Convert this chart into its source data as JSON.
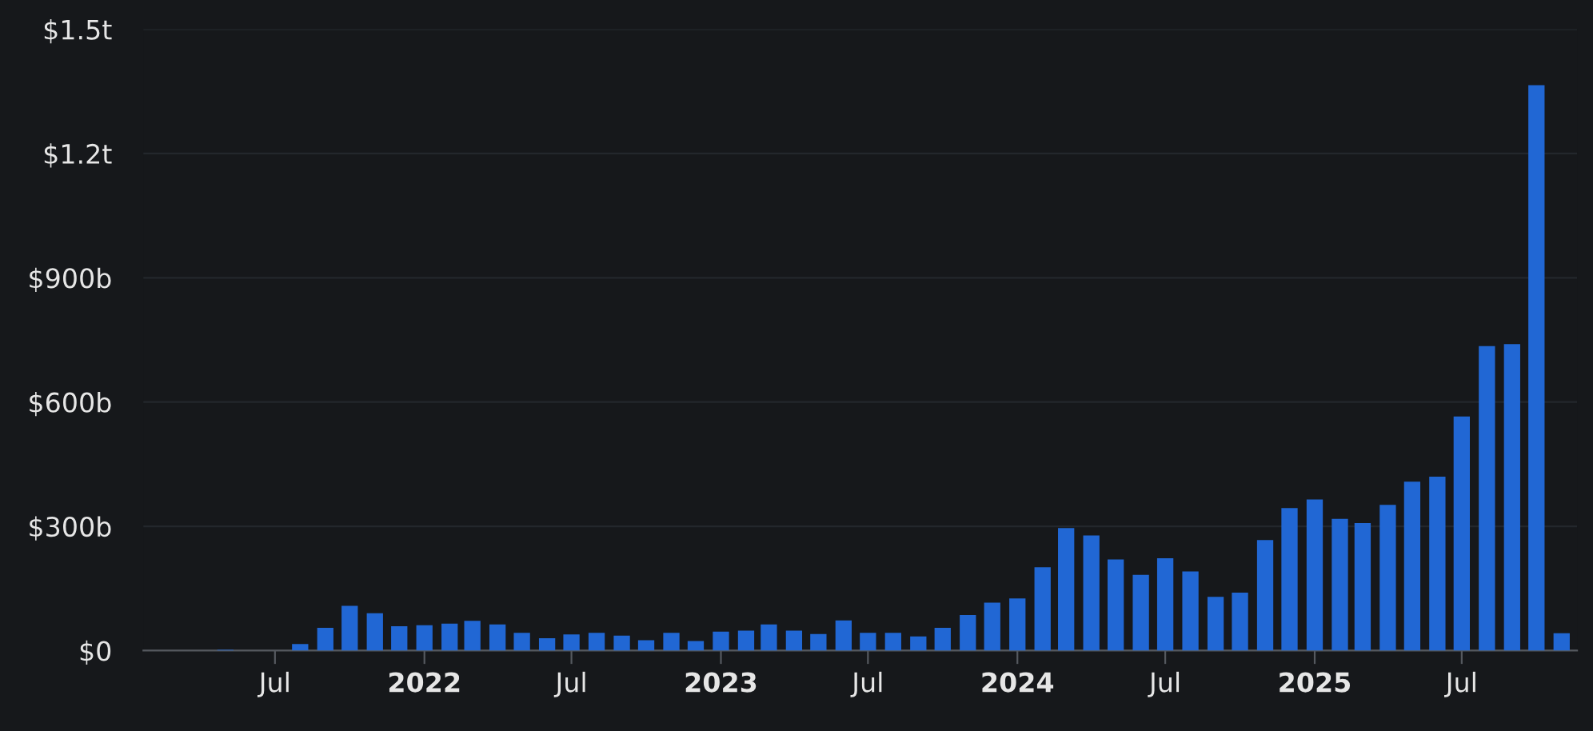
{
  "chart_data": {
    "type": "bar",
    "x": [
      "2021-05",
      "2021-06",
      "2021-07",
      "2021-08",
      "2021-09",
      "2021-10",
      "2021-11",
      "2021-12",
      "2022-01",
      "2022-02",
      "2022-03",
      "2022-04",
      "2022-05",
      "2022-06",
      "2022-07",
      "2022-08",
      "2022-09",
      "2022-10",
      "2022-11",
      "2022-12",
      "2023-01",
      "2023-02",
      "2023-03",
      "2023-04",
      "2023-05",
      "2023-06",
      "2023-07",
      "2023-08",
      "2023-09",
      "2023-10",
      "2023-11",
      "2023-12",
      "2024-01",
      "2024-02",
      "2024-03",
      "2024-04",
      "2024-05",
      "2024-06",
      "2024-07",
      "2024-08",
      "2024-09",
      "2024-10",
      "2024-11",
      "2024-12",
      "2025-01",
      "2025-02",
      "2025-03",
      "2025-04",
      "2025-05",
      "2025-06",
      "2025-07",
      "2025-08",
      "2025-09",
      "2025-10",
      "2025-11"
    ],
    "values": [
      2000000000.0,
      null,
      0,
      16000000000.0,
      55000000000.0,
      108000000000.0,
      90000000000.0,
      59000000000.0,
      61000000000.0,
      65000000000.0,
      72000000000.0,
      63000000000.0,
      43000000000.0,
      30000000000.0,
      39000000000.0,
      43000000000.0,
      36000000000.0,
      25000000000.0,
      43000000000.0,
      23000000000.0,
      46000000000.0,
      48000000000.0,
      63000000000.0,
      48000000000.0,
      40000000000.0,
      73000000000.0,
      43000000000.0,
      43000000000.0,
      34000000000.0,
      55000000000.0,
      86000000000.0,
      116000000000.0,
      126000000000.0,
      201000000000.0,
      296000000000.0,
      278000000000.0,
      220000000000.0,
      183000000000.0,
      223000000000.0,
      191000000000.0,
      130000000000.0,
      140000000000.0,
      267000000000.0,
      344000000000.0,
      365000000000.0,
      318000000000.0,
      308000000000.0,
      352000000000.0,
      408000000000.0,
      420000000000.0,
      565000000000.0,
      735000000000.0,
      740000000000.0,
      1365000000000.0,
      42000000000.0
    ],
    "color": "#2167d4",
    "xlim": [
      "2021-01-20",
      "2025-11-20"
    ],
    "xticks": [
      {
        "value": "2021-07",
        "label": "Jul"
      },
      {
        "value": "2022-01",
        "label": "2022"
      },
      {
        "value": "2022-07",
        "label": "Jul"
      },
      {
        "value": "2023-01",
        "label": "2023"
      },
      {
        "value": "2023-07",
        "label": "Jul"
      },
      {
        "value": "2024-01",
        "label": "2024"
      },
      {
        "value": "2024-07",
        "label": "Jul"
      },
      {
        "value": "2025-01",
        "label": "2025"
      },
      {
        "value": "2025-07",
        "label": "Jul"
      }
    ],
    "ylim": [
      0,
      1500000000000.0
    ],
    "yticks": [
      {
        "value": 0,
        "label": "$0"
      },
      {
        "value": 300000000000.0,
        "label": "$300b"
      },
      {
        "value": 600000000000.0,
        "label": "$600b"
      },
      {
        "value": 900000000000.0,
        "label": "$900b"
      },
      {
        "value": 1200000000000.0,
        "label": "$1.2t"
      },
      {
        "value": 1500000000000.0,
        "label": "$1.5t"
      }
    ],
    "grid": "y"
  }
}
